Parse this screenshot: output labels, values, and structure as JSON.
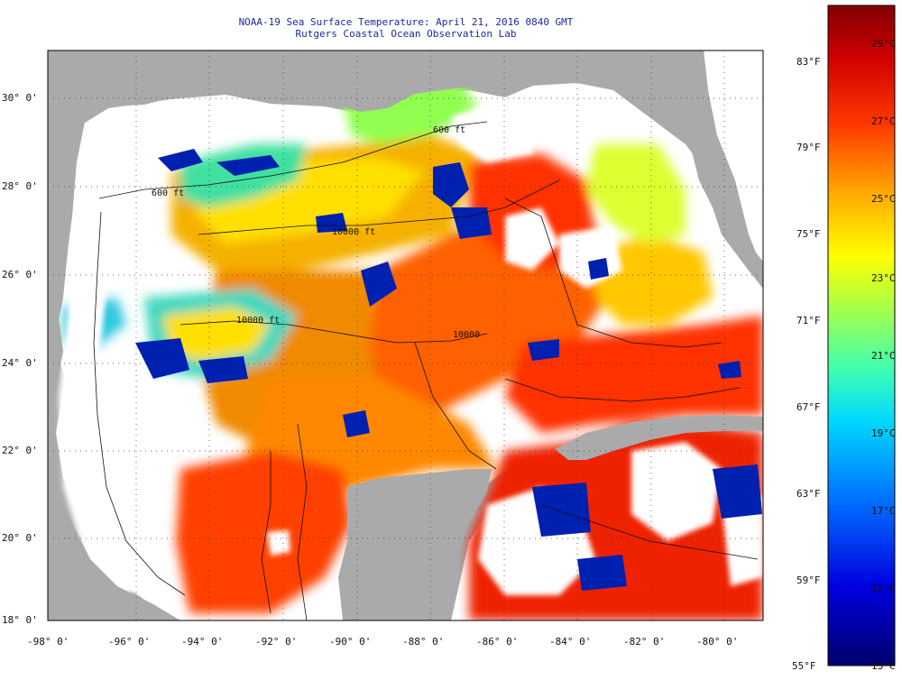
{
  "title": "NOAA-19 Sea Surface Temperature:  April 21, 2016 0840 GMT",
  "subtitle": "Rutgers Coastal Ocean Observation Lab",
  "lat_labels": [
    "30° 0'",
    "28° 0'",
    "26° 0'",
    "24° 0'",
    "22° 0'",
    "20° 0'",
    "18° 0'"
  ],
  "lon_labels": [
    "-98° 0'",
    "-96° 0'",
    "-94° 0'",
    "-92° 0'",
    "-90° 0'",
    "-88° 0'",
    "-86° 0'",
    "-84° 0'",
    "-82° 0'",
    "-80° 0'"
  ],
  "contour_labels": [
    "600 ft",
    "600 ft",
    "10000 ft",
    "10000 ft",
    "10000"
  ],
  "colorbar": {
    "fahrenheit": [
      "83°F",
      "79°F",
      "75°F",
      "71°F",
      "67°F",
      "63°F",
      "59°F",
      "55°F"
    ],
    "celsius": [
      "29°C",
      "27°C",
      "25°C",
      "23°C",
      "21°C",
      "19°C",
      "17°C",
      "15°C",
      "13°C"
    ]
  },
  "colors": {
    "land": "#aaaaaa",
    "cloud": "#ffffff",
    "title": "#1a2a9a"
  }
}
